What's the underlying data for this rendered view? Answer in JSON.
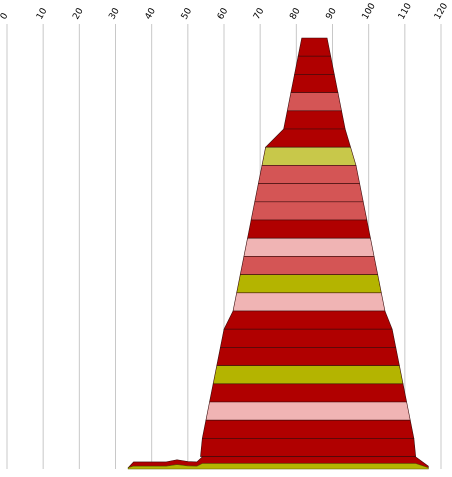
{
  "chart_data": {
    "type": "area",
    "title": "",
    "xlabel": "",
    "ylabel": "",
    "x_ticks": [
      "0",
      "10",
      "20",
      "30",
      "40",
      "50",
      "60",
      "70",
      "80",
      "90",
      "100",
      "110",
      "120"
    ],
    "xlim": [
      0,
      120
    ],
    "grid": true,
    "legend": "none",
    "colors": {
      "dark_red": "#b00000",
      "light_red": "#d45555",
      "pink": "#f0b4b4",
      "olive": "#b4b400",
      "yellow_green": "#c8c84a",
      "grid": "#c8c8c8"
    },
    "bands": [
      {
        "left": 81.5,
        "right": 88.5,
        "color": "dark_red"
      },
      {
        "left": 80.5,
        "right": 89.5,
        "color": "dark_red"
      },
      {
        "left": 79.5,
        "right": 90.5,
        "color": "dark_red"
      },
      {
        "left": 78.5,
        "right": 91.5,
        "color": "light_red"
      },
      {
        "left": 77.5,
        "right": 92.5,
        "color": "dark_red"
      },
      {
        "left": 76.5,
        "right": 93.5,
        "color": "dark_red"
      },
      {
        "left": 71.5,
        "right": 95.0,
        "color": "yellow_green"
      },
      {
        "left": 70.5,
        "right": 96.5,
        "color": "light_red"
      },
      {
        "left": 69.5,
        "right": 97.5,
        "color": "light_red"
      },
      {
        "left": 68.5,
        "right": 98.5,
        "color": "light_red"
      },
      {
        "left": 67.5,
        "right": 99.5,
        "color": "dark_red"
      },
      {
        "left": 66.5,
        "right": 100.5,
        "color": "pink"
      },
      {
        "left": 65.5,
        "right": 101.5,
        "color": "light_red"
      },
      {
        "left": 64.5,
        "right": 102.5,
        "color": "olive"
      },
      {
        "left": 63.5,
        "right": 103.5,
        "color": "pink"
      },
      {
        "left": 62.5,
        "right": 104.5,
        "color": "dark_red"
      },
      {
        "left": 60.0,
        "right": 106.5,
        "color": "dark_red"
      },
      {
        "left": 59.0,
        "right": 107.5,
        "color": "dark_red"
      },
      {
        "left": 58.0,
        "right": 108.5,
        "color": "olive"
      },
      {
        "left": 57.0,
        "right": 109.5,
        "color": "dark_red"
      },
      {
        "left": 56.0,
        "right": 110.5,
        "color": "pink"
      },
      {
        "left": 55.0,
        "right": 111.5,
        "color": "dark_red"
      },
      {
        "left": 54.0,
        "right": 112.5,
        "color": "dark_red"
      }
    ],
    "base_profile": [
      {
        "x": 33.5,
        "top": 0.6
      },
      {
        "x": 35.0,
        "top": 1.3
      },
      {
        "x": 44.0,
        "top": 1.3
      },
      {
        "x": 47.0,
        "top": 2.0
      },
      {
        "x": 50.0,
        "top": 1.4
      },
      {
        "x": 52.5,
        "top": 1.3
      },
      {
        "x": 54.0,
        "top": 2.5
      },
      {
        "x": 113.0,
        "top": 2.5
      },
      {
        "x": 116.5,
        "top": 0.6
      }
    ],
    "base_color": "olive"
  }
}
